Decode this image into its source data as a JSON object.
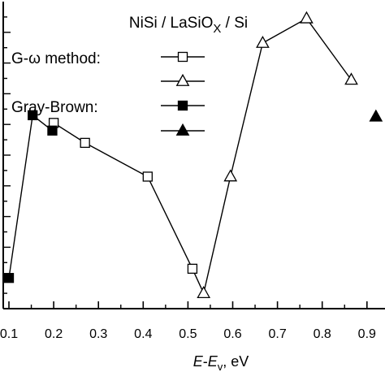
{
  "chart_data": {
    "type": "scatter",
    "title": "NiSi / LaSiOx / Si",
    "title_main": "NiSi / LaSiO",
    "title_sub": "X",
    "title_tail": " / Si",
    "xlabel_prefix": "E",
    "xlabel_mid": "-",
    "xlabel_e": "E",
    "xlabel_sub": "v",
    "xlabel_suffix": ", eV",
    "ylabel": "",
    "xlim": [
      0.1,
      0.9
    ],
    "ylim": [
      0,
      20
    ],
    "x_ticks": [
      "0.1",
      "0.2",
      "0.3",
      "0.4",
      "0.5",
      "0.6",
      "0.7",
      "0.8",
      "0.9"
    ],
    "grid": false,
    "legend_position": "top-left",
    "legend_groups": [
      {
        "label": "G-ω method:",
        "series": [
          "G-ω (open square)",
          "G-ω (open triangle)"
        ]
      },
      {
        "label": "Gray-Brown:",
        "series": [
          "Gray-Brown (filled square)",
          "Gray-Brown (filled triangle)"
        ]
      }
    ],
    "series": [
      {
        "marker": "square-open",
        "points": [
          [
            0.2,
            12.1
          ],
          [
            0.27,
            10.8
          ],
          [
            0.41,
            8.6
          ],
          [
            0.51,
            2.6
          ]
        ]
      },
      {
        "marker": "triangle-open",
        "points": [
          [
            0.535,
            1.0
          ],
          [
            0.595,
            8.6
          ],
          [
            0.667,
            17.3
          ],
          [
            0.765,
            18.9
          ],
          [
            0.865,
            14.9
          ]
        ]
      },
      {
        "marker": "square-filled",
        "points": [
          [
            0.1,
            2.0
          ],
          [
            0.153,
            12.6
          ],
          [
            0.197,
            11.6
          ]
        ]
      },
      {
        "marker": "triangle-filled",
        "points": [
          [
            0.92,
            12.5
          ]
        ]
      }
    ],
    "connected_path": [
      [
        0.1,
        2.0
      ],
      [
        0.153,
        12.6
      ],
      [
        0.197,
        11.6
      ],
      [
        0.2,
        12.1
      ],
      [
        0.27,
        10.8
      ],
      [
        0.41,
        8.6
      ],
      [
        0.51,
        2.6
      ],
      [
        0.535,
        1.0
      ],
      [
        0.595,
        8.6
      ],
      [
        0.667,
        17.3
      ],
      [
        0.765,
        18.9
      ],
      [
        0.865,
        14.9
      ]
    ]
  }
}
